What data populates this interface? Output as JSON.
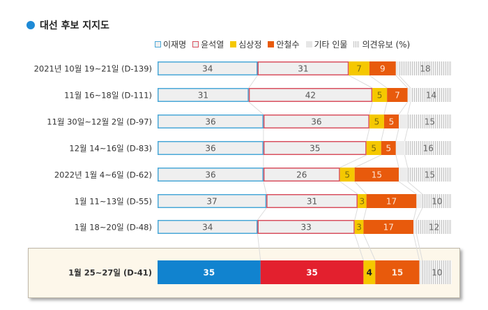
{
  "title": "대선 후보 지지도",
  "legend": [
    {
      "name": "이재명",
      "key": "lee"
    },
    {
      "name": "윤석열",
      "key": "yoon"
    },
    {
      "name": "심상정",
      "key": "sim"
    },
    {
      "name": "안철수",
      "key": "ahn"
    },
    {
      "name": "기타 인물",
      "key": "etc"
    },
    {
      "name": "의견유보 (%)",
      "key": "undecided"
    }
  ],
  "colors": {
    "lee_border": "#4aa8d8",
    "yoon_border": "#d9505f",
    "light_fill": "#efefef",
    "sim": "#f5c800",
    "ahn": "#e85a0c",
    "etc": "#ececec",
    "undecided_hatch": "#bbbbbb",
    "lee_highlight": "#1183cf",
    "yoon_highlight": "#e3202e",
    "highlight_bg": "#fdf7ea",
    "title_dot": "#1e8ad6"
  },
  "chart_data": {
    "type": "bar",
    "orientation": "horizontal-stacked-100",
    "title": "대선 후보 지지도",
    "unit": "%",
    "categories": [
      "2021년 10월 19~21일 (D-139)",
      "11월 16~18일 (D-111)",
      "11월 30일~12월 2일 (D-97)",
      "12월 14~16일 (D-83)",
      "2022년 1월 4~6일 (D-62)",
      "1월 11~13일 (D-55)",
      "1월 18~20일 (D-48)",
      "1월 25~27일 (D-41)"
    ],
    "series": [
      {
        "name": "이재명",
        "values": [
          34,
          31,
          36,
          36,
          36,
          37,
          34,
          35
        ]
      },
      {
        "name": "윤석열",
        "values": [
          31,
          42,
          36,
          35,
          26,
          31,
          33,
          35
        ]
      },
      {
        "name": "심상정",
        "values": [
          7,
          5,
          5,
          5,
          5,
          3,
          3,
          4
        ]
      },
      {
        "name": "안철수",
        "values": [
          9,
          7,
          5,
          5,
          15,
          17,
          17,
          15
        ]
      },
      {
        "name": "기타 인물",
        "values": [
          1,
          1,
          3,
          3,
          3,
          2,
          1,
          1
        ],
        "labeled": false
      },
      {
        "name": "의견유보",
        "values": [
          18,
          14,
          15,
          16,
          15,
          10,
          12,
          10
        ]
      }
    ],
    "highlighted_category": "1월 25~27일 (D-41)",
    "xlim": [
      0,
      100
    ],
    "legend_position": "top-right",
    "grid": false
  }
}
